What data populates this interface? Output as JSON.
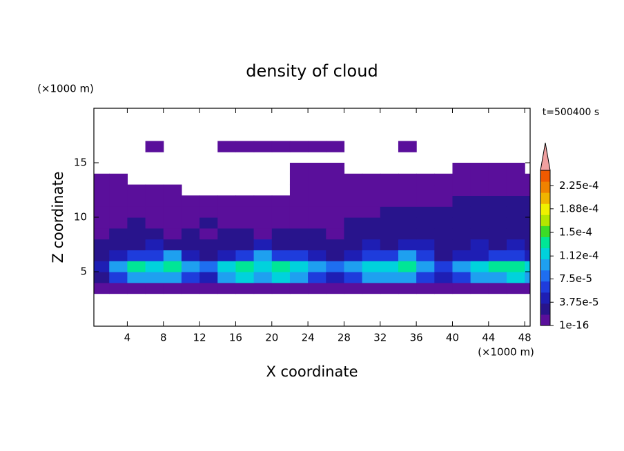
{
  "chart_data": {
    "type": "contour",
    "title": "density of cloud",
    "xlabel": "X coordinate",
    "ylabel": "Z coordinate",
    "x_unit_label": "(×1000 m)",
    "y_unit_label": "(×1000 m)",
    "time_label": "t=500400 s",
    "xlim": [
      0.3,
      48.6
    ],
    "ylim": [
      0,
      20
    ],
    "xticks": [
      4,
      8,
      12,
      16,
      20,
      24,
      28,
      32,
      36,
      40,
      44,
      48
    ],
    "yticks": [
      5,
      10,
      15
    ],
    "x": [
      1,
      3,
      5,
      7,
      9,
      11,
      13,
      15,
      17,
      19,
      21,
      23,
      25,
      27,
      29,
      31,
      33,
      35,
      37,
      39,
      41,
      43,
      45,
      47,
      49
    ],
    "z": [
      3.5,
      4.5,
      5.5,
      6.5,
      7.5,
      8.5,
      9.5,
      10.5,
      11.5,
      12.5,
      13.5,
      14.5,
      15.5,
      16.5
    ],
    "values": [
      [
        1e-05,
        1e-05,
        1e-05,
        1e-05,
        1e-05,
        1e-05,
        1e-05,
        1e-05,
        1e-05,
        1e-05,
        1e-05,
        1e-05,
        1e-05,
        1e-05,
        1e-05,
        1e-05,
        1e-05,
        1e-05,
        1e-05,
        1e-05,
        1e-05,
        1e-05,
        1e-05,
        1e-05,
        1e-05
      ],
      [
        3e-05,
        7e-05,
        0.0001,
        9e-05,
        0.0001,
        7e-05,
        5e-05,
        0.0001,
        0.00012,
        0.0001,
        0.00012,
        0.0001,
        7e-05,
        5e-05,
        7e-05,
        9e-05,
        0.0001,
        0.0001,
        7e-05,
        5e-05,
        7e-05,
        9e-05,
        0.0001,
        0.00012,
        0.0001
      ],
      [
        5e-05,
        9e-05,
        0.000135,
        0.00012,
        0.000135,
        0.0001,
        8e-05,
        0.00012,
        0.000135,
        0.00012,
        0.000135,
        0.00012,
        9e-05,
        8e-05,
        0.0001,
        0.00012,
        0.00012,
        0.000135,
        0.0001,
        7e-05,
        9e-05,
        0.00012,
        0.000135,
        0.000135,
        0.00012
      ],
      [
        3e-05,
        5e-05,
        7e-05,
        7e-05,
        9e-05,
        5e-05,
        3e-05,
        5e-05,
        7e-05,
        9e-05,
        7e-05,
        7e-05,
        5e-05,
        3e-05,
        5e-05,
        7e-05,
        7e-05,
        9e-05,
        7e-05,
        3e-05,
        5e-05,
        5e-05,
        7e-05,
        7e-05,
        5e-05
      ],
      [
        2e-05,
        3e-05,
        3e-05,
        5e-05,
        3e-05,
        3e-05,
        2e-05,
        3e-05,
        3e-05,
        5e-05,
        3e-05,
        3e-05,
        3e-05,
        2e-05,
        3e-05,
        5e-05,
        3e-05,
        5e-05,
        5e-05,
        3e-05,
        3e-05,
        5e-05,
        3e-05,
        5e-05,
        3e-05
      ],
      [
        1e-05,
        2e-05,
        2e-05,
        2e-05,
        1e-05,
        2e-05,
        1e-05,
        2e-05,
        2e-05,
        1e-05,
        2e-05,
        2e-05,
        2e-05,
        1e-05,
        2e-05,
        2e-05,
        2e-05,
        3e-05,
        2e-05,
        2e-05,
        2e-05,
        3e-05,
        2e-05,
        2e-05,
        2e-05
      ],
      [
        1e-05,
        1e-05,
        2e-05,
        1e-05,
        1e-05,
        1e-05,
        2e-05,
        1e-05,
        1e-05,
        1e-05,
        1e-05,
        1e-05,
        1e-05,
        1e-05,
        2e-05,
        2e-05,
        2e-05,
        2e-05,
        2e-05,
        2e-05,
        2e-05,
        2e-05,
        2e-05,
        2e-05,
        2e-05
      ],
      [
        1e-05,
        1e-05,
        1e-05,
        1e-05,
        1e-05,
        1e-05,
        1e-05,
        1e-05,
        1e-05,
        1e-05,
        1e-05,
        1e-05,
        1e-05,
        1e-05,
        1e-05,
        1e-05,
        2e-05,
        2e-05,
        2e-05,
        2e-05,
        2e-05,
        2e-05,
        2e-05,
        2e-05,
        2e-05
      ],
      [
        1e-05,
        1e-05,
        1e-05,
        1e-05,
        1e-05,
        1e-05,
        1e-05,
        1e-05,
        1e-05,
        1e-05,
        1e-05,
        1e-05,
        1e-05,
        1e-05,
        1e-05,
        1e-05,
        1e-05,
        1e-05,
        1e-05,
        1e-05,
        2e-05,
        2e-05,
        2e-05,
        2e-05,
        2e-05
      ],
      [
        1e-05,
        1e-05,
        1e-05,
        1e-05,
        1e-05,
        0,
        0,
        0,
        0,
        0,
        0,
        1e-05,
        1e-05,
        1e-05,
        1e-05,
        1e-05,
        1e-05,
        1e-05,
        1e-05,
        1e-05,
        1e-05,
        1e-05,
        1e-05,
        1e-05,
        1e-05
      ],
      [
        1e-05,
        1e-05,
        0,
        0,
        0,
        0,
        0,
        0,
        0,
        0,
        0,
        1e-05,
        1e-05,
        1e-05,
        1e-05,
        1e-05,
        1e-05,
        1e-05,
        1e-05,
        1e-05,
        1e-05,
        1e-05,
        1e-05,
        1e-05,
        1e-05
      ],
      [
        0,
        0,
        0,
        0,
        0,
        0,
        0,
        0,
        0,
        0,
        0,
        1e-05,
        1e-05,
        1e-05,
        0,
        0,
        0,
        0,
        0,
        0,
        1e-05,
        1e-05,
        1e-05,
        1e-05,
        0
      ],
      [
        0,
        0,
        0,
        0,
        0,
        0,
        0,
        0,
        0,
        0,
        0,
        0,
        0,
        0,
        0,
        0,
        0,
        0,
        0,
        0,
        0,
        0,
        0,
        0,
        0
      ],
      [
        0,
        0,
        0,
        1e-05,
        0,
        0,
        0,
        1e-05,
        1e-05,
        1e-05,
        1e-05,
        1e-05,
        1e-05,
        1e-05,
        0,
        0,
        0,
        1e-05,
        0,
        0,
        0,
        0,
        0,
        0,
        0
      ]
    ],
    "colorbar": {
      "clim": [
        1e-16,
        0.00025
      ],
      "ticks": [
        1e-16,
        {
          "value": 3.75e-05,
          "label": "3.75e-5"
        },
        {
          "value": 7.5e-05,
          "label": "7.5e-5"
        },
        {
          "value": 0.000112,
          "label": "1.12e-4"
        },
        {
          "value": 0.00015,
          "label": "1.5e-4"
        },
        {
          "value": 0.000188,
          "label": "1.88e-4"
        },
        {
          "value": 0.000225,
          "label": "2.25e-4"
        }
      ],
      "colors": [
        "#5a0f9b",
        "#28148c",
        "#1e1eb4",
        "#1e3cdc",
        "#1e6ef0",
        "#1ea0f0",
        "#00d2dc",
        "#00e696",
        "#3cdc28",
        "#b4e600",
        "#f0f000",
        "#f0b400",
        "#f08200",
        "#f05a00"
      ],
      "over_color": "#f0a0a0"
    }
  }
}
